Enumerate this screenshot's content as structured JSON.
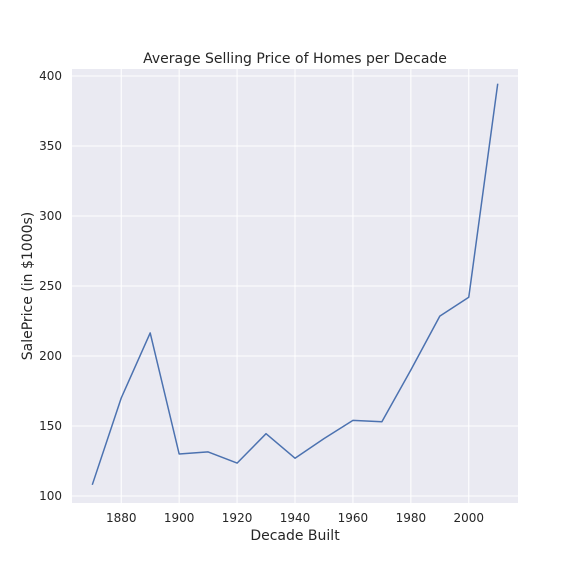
{
  "chart_data": {
    "type": "line",
    "title": "Average Selling Price of Homes per Decade",
    "xlabel": "Decade Built",
    "ylabel": "SalePrice (in $1000s)",
    "xlim": [
      1863,
      2017
    ],
    "ylim": [
      95,
      405
    ],
    "xticks": [
      1880,
      1900,
      1920,
      1940,
      1960,
      1980,
      2000
    ],
    "yticks": [
      100,
      150,
      200,
      250,
      300,
      350,
      400
    ],
    "grid": true,
    "line_color": "#4c72b0",
    "background_color": "#eaeaf2",
    "grid_color": "#ffffff",
    "series": [
      {
        "x": [
          1870,
          1880,
          1890,
          1900,
          1910,
          1920,
          1930,
          1940,
          1950,
          1960,
          1970,
          1980,
          1990,
          2000,
          2010
        ],
        "values": [
          108,
          170,
          216.5,
          130,
          131.5,
          123.5,
          144.5,
          127,
          141,
          154,
          153,
          190,
          228.5,
          242,
          394.5
        ]
      }
    ]
  }
}
